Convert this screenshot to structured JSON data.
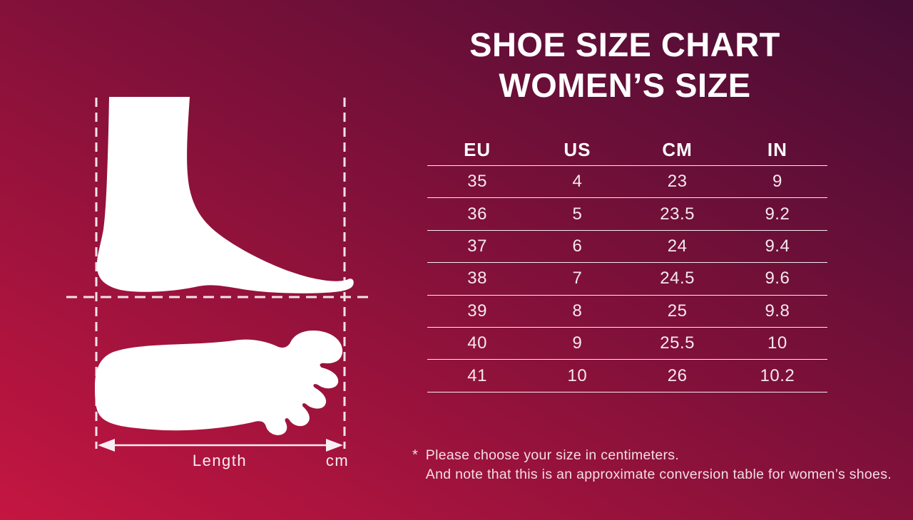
{
  "title": {
    "line1": "SHOE SIZE CHART",
    "line2": "WOMEN’S SIZE"
  },
  "table": {
    "columns": [
      "EU",
      "US",
      "CM",
      "IN"
    ],
    "rows": [
      [
        "35",
        "4",
        "23",
        "9"
      ],
      [
        "36",
        "5",
        "23.5",
        "9.2"
      ],
      [
        "37",
        "6",
        "24",
        "9.4"
      ],
      [
        "38",
        "7",
        "24.5",
        "9.6"
      ],
      [
        "39",
        "8",
        "25",
        "9.8"
      ],
      [
        "40",
        "9",
        "25.5",
        "10"
      ],
      [
        "41",
        "10",
        "26",
        "10.2"
      ]
    ]
  },
  "chart_data": {
    "type": "table",
    "title": "SHOE SIZE CHART WOMEN’S SIZE",
    "columns": [
      "EU",
      "US",
      "CM",
      "IN"
    ],
    "rows": [
      [
        35,
        4,
        23,
        9
      ],
      [
        36,
        5,
        23.5,
        9.2
      ],
      [
        37,
        6,
        24,
        9.4
      ],
      [
        38,
        7,
        24.5,
        9.6
      ],
      [
        39,
        8,
        25,
        9.8
      ],
      [
        40,
        9,
        25.5,
        10
      ],
      [
        41,
        10,
        26,
        10.2
      ]
    ]
  },
  "diagram": {
    "length_label": "Length",
    "unit_label": "cm"
  },
  "footnote": {
    "marker": "*",
    "line1": "Please choose your size in centimeters.",
    "line2": "And note that this is an approximate conversion table for women’s shoes."
  },
  "colors": {
    "gradient_start": "#c41641",
    "gradient_mid": "#86113a",
    "gradient_end": "#460d35",
    "title_text": "#ffffff",
    "table_text": "#f6e8ee",
    "line_color": "#f2e3ea",
    "foot_silhouette": "#ffffff"
  }
}
